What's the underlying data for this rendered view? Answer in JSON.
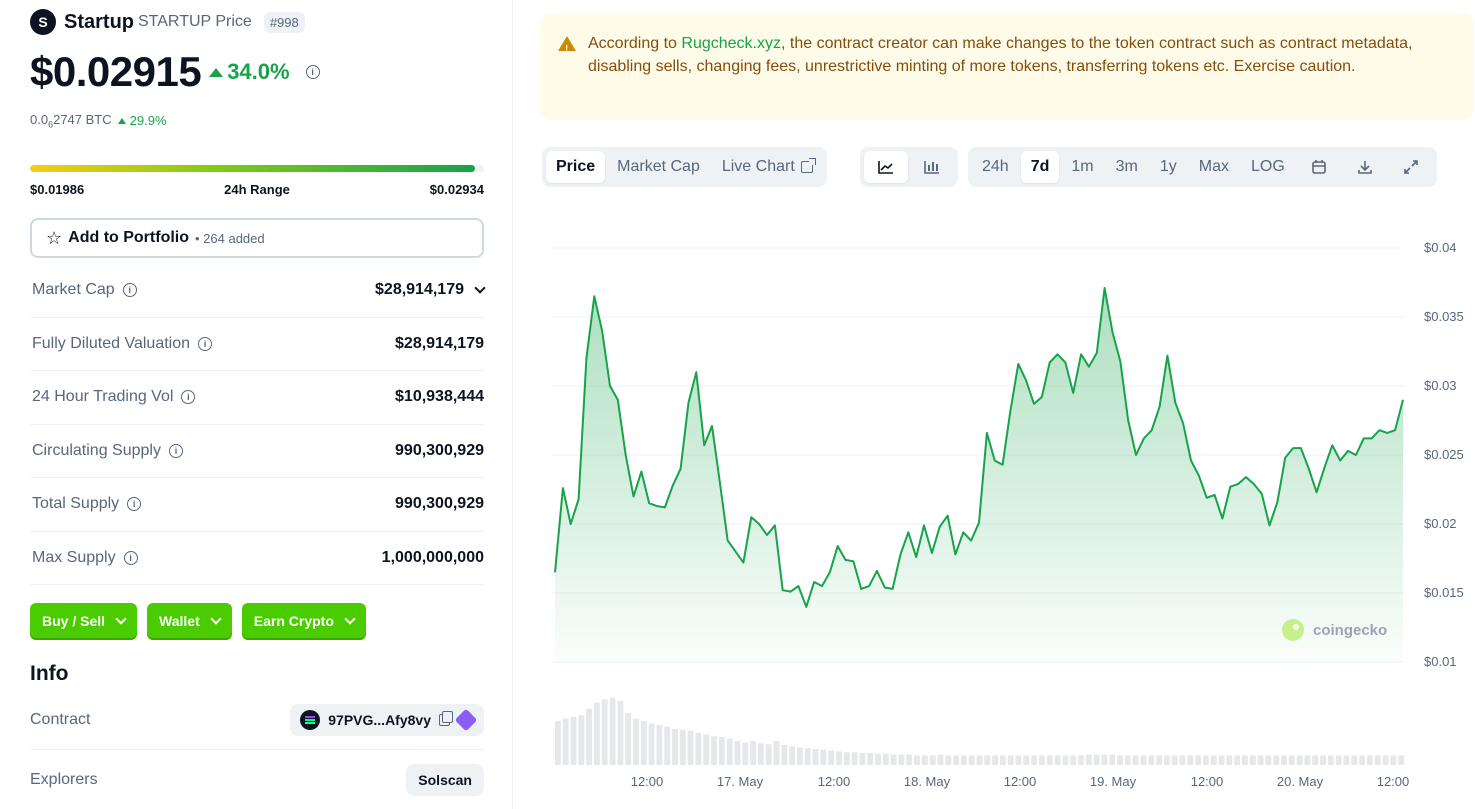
{
  "coin": {
    "logo_letter": "S",
    "name": "Startup",
    "symbol_label": "STARTUP Price",
    "rank": "#998",
    "price": "$0.02915",
    "change_pct": "34.0%",
    "btc_prefix": "0.0",
    "btc_sub": "6",
    "btc_rest": "2747 BTC",
    "btc_change": "29.9%"
  },
  "range": {
    "low": "$0.01986",
    "label": "24h Range",
    "high": "$0.02934",
    "fill_fraction": 0.98
  },
  "portfolio": {
    "label": "Add to Portfolio",
    "count": "• 264 added"
  },
  "stats": [
    {
      "label": "Market Cap",
      "value": "$28,914,179"
    },
    {
      "label": "Fully Diluted Valuation",
      "value": "$28,914,179"
    },
    {
      "label": "24 Hour Trading Vol",
      "value": "$10,938,444"
    },
    {
      "label": "Circulating Supply",
      "value": "990,300,929"
    },
    {
      "label": "Total Supply",
      "value": "990,300,929"
    },
    {
      "label": "Max Supply",
      "value": "1,000,000,000"
    }
  ],
  "actions": {
    "buy_sell": "Buy / Sell",
    "wallet": "Wallet",
    "earn": "Earn Crypto"
  },
  "info": {
    "title": "Info",
    "contract_label": "Contract",
    "contract_value": "97PVG...Afy8vy",
    "explorers_label": "Explorers",
    "explorer_value": "Solscan"
  },
  "warning": {
    "prefix": "According to ",
    "link": "Rugcheck.xyz",
    "text": ", the contract creator can make changes to the token contract such as contract metadata, disabling sells, changing fees, unrestrictive minting of more tokens, transferring tokens etc. Exercise caution."
  },
  "chart_tabs": {
    "price": "Price",
    "market_cap": "Market Cap",
    "live_chart": "Live Chart"
  },
  "range_tabs": [
    "24h",
    "7d",
    "1m",
    "3m",
    "1y",
    "Max",
    "LOG"
  ],
  "range_tab_active": "7d",
  "watermark": "coingecko",
  "colors": {
    "positive": "#16a34a",
    "line": "#16a34a",
    "action_green": "#4bcc00",
    "warning_bg": "#fefce8"
  },
  "chart_data": {
    "type": "area",
    "title": "",
    "ylim": [
      0.01,
      0.04
    ],
    "y_ticks": [
      "$0.04",
      "$0.035",
      "$0.03",
      "$0.025",
      "$0.02",
      "$0.015",
      "$0.01"
    ],
    "y_tick_values": [
      0.04,
      0.035,
      0.03,
      0.025,
      0.02,
      0.015,
      0.01
    ],
    "x_ticks": [
      "12:00",
      "17. May",
      "12:00",
      "18. May",
      "12:00",
      "19. May",
      "12:00",
      "20. May",
      "12:00"
    ],
    "series": [
      {
        "values": [
          0.0165,
          0.0226,
          0.02,
          0.0218,
          0.032,
          0.0365,
          0.034,
          0.03,
          0.029,
          0.025,
          0.022,
          0.0238,
          0.0215,
          0.0213,
          0.0212,
          0.0228,
          0.024,
          0.0288,
          0.031,
          0.0257,
          0.0271,
          0.023,
          0.0188,
          0.018,
          0.0172,
          0.0205,
          0.02,
          0.0192,
          0.0199,
          0.0152,
          0.0151,
          0.0155,
          0.014,
          0.0158,
          0.0155,
          0.0165,
          0.0184,
          0.0174,
          0.0173,
          0.0153,
          0.0155,
          0.0166,
          0.0154,
          0.0153,
          0.0178,
          0.0194,
          0.0176,
          0.0199,
          0.0179,
          0.0198,
          0.0206,
          0.0178,
          0.0194,
          0.0188,
          0.0201,
          0.0266,
          0.0246,
          0.0243,
          0.0282,
          0.0316,
          0.0304,
          0.0287,
          0.0292,
          0.0317,
          0.0323,
          0.0317,
          0.0295,
          0.0323,
          0.0314,
          0.0324,
          0.0371,
          0.0339,
          0.0318,
          0.0275,
          0.025,
          0.0262,
          0.0268,
          0.0285,
          0.0322,
          0.0288,
          0.0273,
          0.0246,
          0.0235,
          0.0219,
          0.0221,
          0.0204,
          0.0227,
          0.0229,
          0.0234,
          0.0229,
          0.0222,
          0.0199,
          0.0216,
          0.0248,
          0.0255,
          0.0255,
          0.024,
          0.0223,
          0.0241,
          0.0257,
          0.0246,
          0.0253,
          0.025,
          0.0262,
          0.0262,
          0.0268,
          0.0266,
          0.0268,
          0.029
        ]
      }
    ],
    "volume": [
      0.55,
      0.58,
      0.6,
      0.62,
      0.7,
      0.78,
      0.82,
      0.84,
      0.8,
      0.65,
      0.58,
      0.55,
      0.52,
      0.5,
      0.48,
      0.45,
      0.44,
      0.43,
      0.4,
      0.38,
      0.36,
      0.35,
      0.33,
      0.3,
      0.28,
      0.3,
      0.27,
      0.26,
      0.3,
      0.25,
      0.23,
      0.22,
      0.21,
      0.2,
      0.19,
      0.18,
      0.17,
      0.16,
      0.16,
      0.15,
      0.15,
      0.14,
      0.14,
      0.13,
      0.13,
      0.13,
      0.12,
      0.12,
      0.12,
      0.13,
      0.12,
      0.12,
      0.12,
      0.12,
      0.12,
      0.12,
      0.12,
      0.12,
      0.12,
      0.12,
      0.12,
      0.12,
      0.12,
      0.12,
      0.12,
      0.12,
      0.12,
      0.12,
      0.13,
      0.13,
      0.13,
      0.13,
      0.12,
      0.12,
      0.12,
      0.12,
      0.12,
      0.12,
      0.12,
      0.12,
      0.12,
      0.12,
      0.12,
      0.12,
      0.12,
      0.12,
      0.12,
      0.12,
      0.12,
      0.12,
      0.12,
      0.12,
      0.12,
      0.12,
      0.12,
      0.12,
      0.12,
      0.12,
      0.12,
      0.12,
      0.12,
      0.12,
      0.12,
      0.12,
      0.12,
      0.12,
      0.12,
      0.12,
      0.12
    ]
  }
}
